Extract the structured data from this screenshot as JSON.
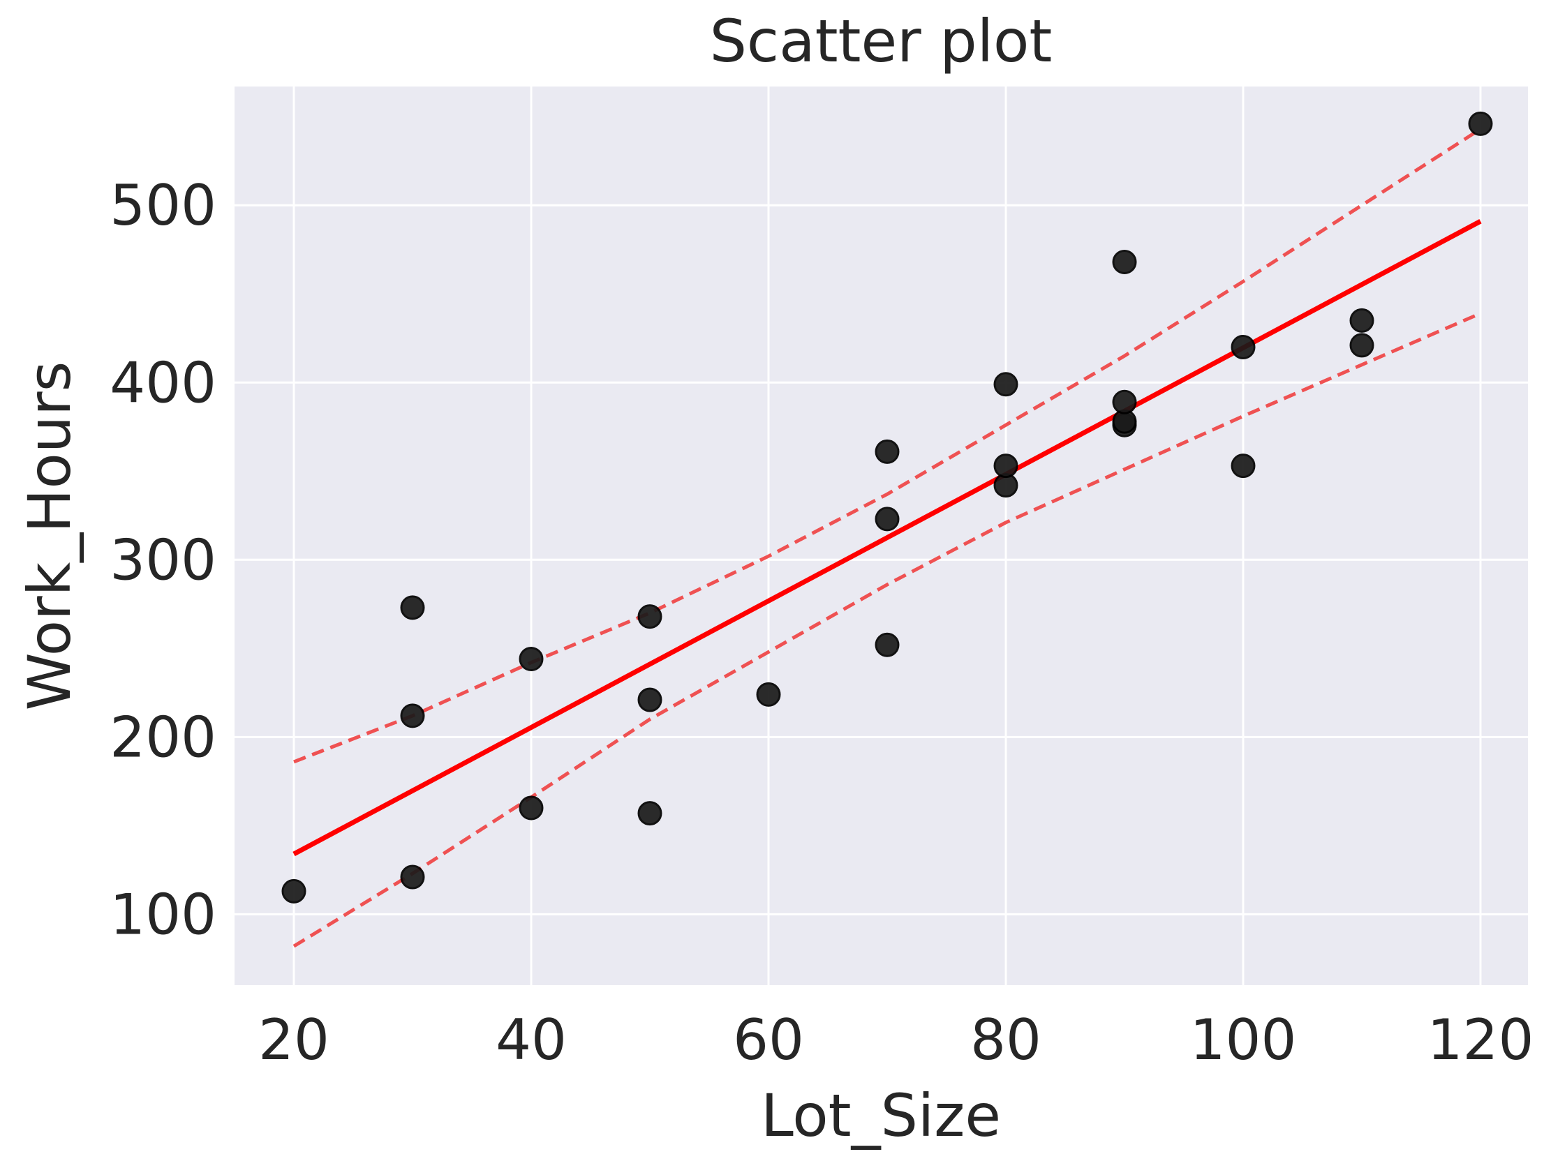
{
  "chart_data": {
    "type": "scatter",
    "title": "Scatter plot",
    "xlabel": "Lot_Size",
    "ylabel": "Work_Hours",
    "xlim": [
      15,
      124
    ],
    "ylim": [
      60,
      567
    ],
    "xticks": [
      20,
      40,
      60,
      80,
      100,
      120
    ],
    "yticks": [
      100,
      200,
      300,
      400,
      500
    ],
    "grid": true,
    "colors": {
      "background": "#eaeaf2",
      "grid": "#ffffff",
      "points": "#1a1a1a",
      "fit_line": "#ff0000",
      "band": "#f04040"
    },
    "points": [
      {
        "x": 20,
        "y": 113
      },
      {
        "x": 30,
        "y": 121
      },
      {
        "x": 30,
        "y": 212
      },
      {
        "x": 30,
        "y": 273
      },
      {
        "x": 40,
        "y": 160
      },
      {
        "x": 40,
        "y": 244
      },
      {
        "x": 50,
        "y": 157
      },
      {
        "x": 50,
        "y": 221
      },
      {
        "x": 50,
        "y": 268
      },
      {
        "x": 60,
        "y": 224
      },
      {
        "x": 70,
        "y": 252
      },
      {
        "x": 70,
        "y": 323
      },
      {
        "x": 70,
        "y": 361
      },
      {
        "x": 80,
        "y": 342
      },
      {
        "x": 80,
        "y": 353
      },
      {
        "x": 80,
        "y": 399
      },
      {
        "x": 90,
        "y": 376
      },
      {
        "x": 90,
        "y": 378
      },
      {
        "x": 90,
        "y": 389
      },
      {
        "x": 90,
        "y": 468
      },
      {
        "x": 100,
        "y": 353
      },
      {
        "x": 100,
        "y": 420
      },
      {
        "x": 110,
        "y": 421
      },
      {
        "x": 110,
        "y": 435
      },
      {
        "x": 120,
        "y": 546
      }
    ],
    "fit_line": [
      {
        "x": 20,
        "y": 134
      },
      {
        "x": 120,
        "y": 491
      }
    ],
    "upper_band": [
      {
        "x": 20,
        "y": 186
      },
      {
        "x": 30,
        "y": 212
      },
      {
        "x": 40,
        "y": 242
      },
      {
        "x": 50,
        "y": 270
      },
      {
        "x": 60,
        "y": 302
      },
      {
        "x": 70,
        "y": 337
      },
      {
        "x": 80,
        "y": 376
      },
      {
        "x": 90,
        "y": 415
      },
      {
        "x": 100,
        "y": 457
      },
      {
        "x": 110,
        "y": 500
      },
      {
        "x": 120,
        "y": 543
      }
    ],
    "lower_band": [
      {
        "x": 20,
        "y": 82
      },
      {
        "x": 30,
        "y": 123
      },
      {
        "x": 40,
        "y": 166
      },
      {
        "x": 50,
        "y": 210
      },
      {
        "x": 60,
        "y": 248
      },
      {
        "x": 70,
        "y": 286
      },
      {
        "x": 80,
        "y": 321
      },
      {
        "x": 90,
        "y": 351
      },
      {
        "x": 100,
        "y": 381
      },
      {
        "x": 110,
        "y": 410
      },
      {
        "x": 120,
        "y": 439
      }
    ]
  }
}
